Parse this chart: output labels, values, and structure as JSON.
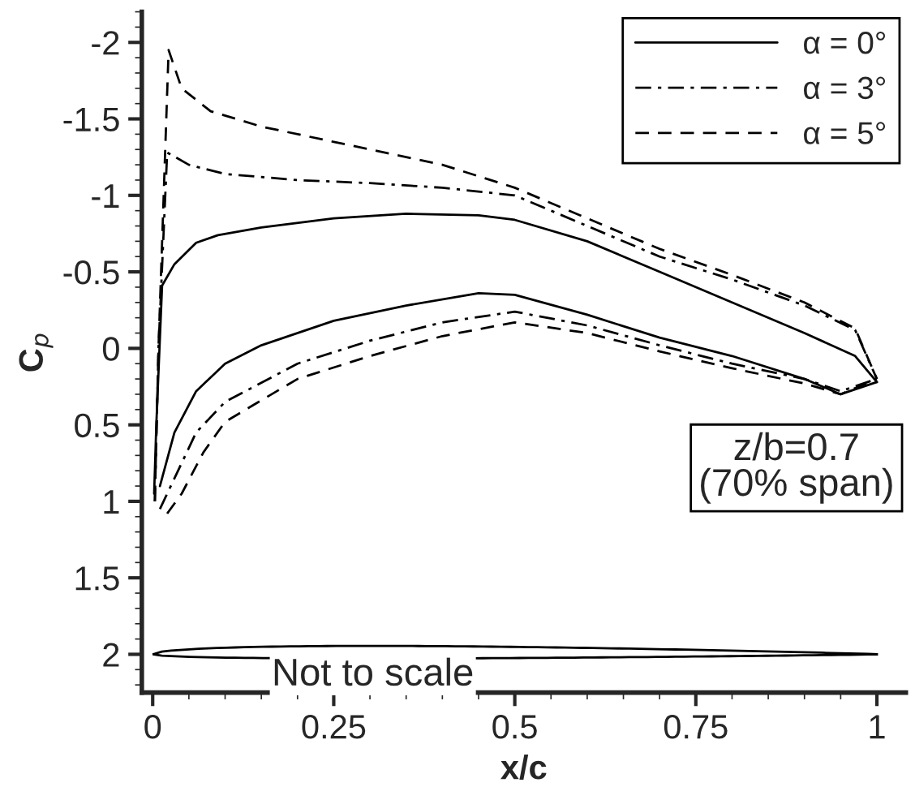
{
  "chart_data": {
    "type": "line",
    "xlabel": "x/c",
    "ylabel": "C$_{p}$",
    "xlim": [
      -0.015,
      1.04
    ],
    "ylim": [
      2.25,
      -2.2
    ],
    "xticks": [
      0,
      0.25,
      0.5,
      0.75,
      1
    ],
    "yticks": [
      -2,
      -1.5,
      -1,
      -0.5,
      0,
      0.5,
      1,
      1.5,
      2
    ],
    "grid": false,
    "legend": "top right",
    "marker": "none",
    "series": [
      {
        "name": "α = 0°",
        "color": "#000000",
        "line_style": "solid",
        "x": [
          0.002,
          0.005,
          0.013,
          0.03,
          0.06,
          0.09,
          0.15,
          0.25,
          0.35,
          0.45,
          0.5,
          0.6,
          0.7,
          0.8,
          0.9,
          0.97,
          1.0
        ],
        "values": [
          0.95,
          0.5,
          -0.41,
          -0.55,
          -0.69,
          -0.74,
          -0.79,
          -0.85,
          -0.88,
          -0.87,
          -0.84,
          -0.7,
          -0.5,
          -0.3,
          -0.1,
          0.05,
          0.22
        ]
      },
      {
        "color": "#000000",
        "line_style": "solid",
        "x": [
          0.01,
          0.03,
          0.06,
          0.1,
          0.15,
          0.25,
          0.35,
          0.45,
          0.5,
          0.6,
          0.7,
          0.8,
          0.9,
          0.95,
          1.0
        ],
        "values": [
          0.9,
          0.55,
          0.28,
          0.1,
          -0.02,
          -0.18,
          -0.28,
          -0.36,
          -0.35,
          -0.22,
          -0.07,
          0.05,
          0.2,
          0.3,
          0.22
        ]
      },
      {
        "name": "α = 3°",
        "color": "#000000",
        "line_style": "dashdot",
        "x": [
          0.003,
          0.008,
          0.02,
          0.05,
          0.1,
          0.2,
          0.3,
          0.4,
          0.5,
          0.6,
          0.7,
          0.8,
          0.9,
          0.97,
          1.0
        ],
        "values": [
          1.0,
          0.0,
          -1.28,
          -1.2,
          -1.14,
          -1.1,
          -1.08,
          -1.05,
          -1.0,
          -0.8,
          -0.6,
          -0.45,
          -0.28,
          -0.12,
          0.2
        ]
      },
      {
        "color": "#000000",
        "line_style": "dashdot",
        "x": [
          0.01,
          0.03,
          0.06,
          0.1,
          0.2,
          0.3,
          0.4,
          0.5,
          0.6,
          0.7,
          0.8,
          0.9,
          0.95,
          1.0
        ],
        "values": [
          1.05,
          0.85,
          0.55,
          0.35,
          0.1,
          -0.05,
          -0.17,
          -0.24,
          -0.15,
          -0.02,
          0.1,
          0.2,
          0.28,
          0.2
        ]
      },
      {
        "name": "α = 5°",
        "color": "#000000",
        "line_style": "dashed",
        "x": [
          0.003,
          0.008,
          0.022,
          0.04,
          0.08,
          0.15,
          0.25,
          0.4,
          0.5,
          0.6,
          0.7,
          0.8,
          0.9,
          0.97,
          1.0
        ],
        "values": [
          1.0,
          0.0,
          -1.95,
          -1.7,
          -1.55,
          -1.45,
          -1.35,
          -1.2,
          -1.05,
          -0.85,
          -0.65,
          -0.48,
          -0.3,
          -0.13,
          0.2
        ]
      },
      {
        "color": "#000000",
        "line_style": "dashed",
        "x": [
          0.02,
          0.04,
          0.07,
          0.1,
          0.2,
          0.3,
          0.4,
          0.5,
          0.6,
          0.7,
          0.8,
          0.9,
          0.95,
          1.0
        ],
        "values": [
          1.08,
          0.95,
          0.68,
          0.48,
          0.2,
          0.05,
          -0.08,
          -0.17,
          -0.1,
          0.02,
          0.13,
          0.23,
          0.3,
          0.2
        ]
      }
    ],
    "annotations": [
      "z/b=0.7\n(70% span)",
      "Not to scale"
    ]
  }
}
